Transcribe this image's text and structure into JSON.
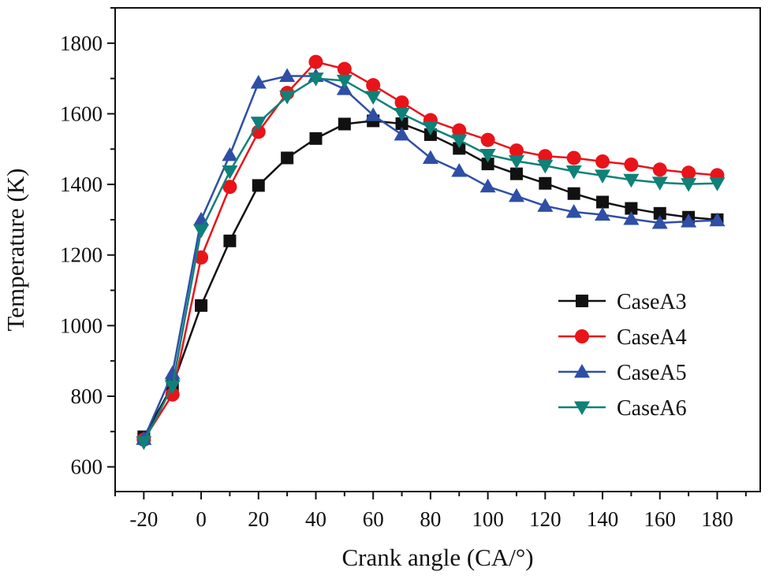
{
  "chart_data": {
    "type": "line",
    "title": "",
    "xlabel": "Crank angle (CA/°)",
    "ylabel": "Temperature (K)",
    "xlim": [
      -30,
      195
    ],
    "ylim": [
      530,
      1900
    ],
    "x_ticks": [
      -20,
      0,
      20,
      40,
      60,
      80,
      100,
      120,
      140,
      160,
      180
    ],
    "x_tick_labels": [
      "-20",
      "0",
      "20",
      "40",
      "60",
      "80",
      "100",
      "120",
      "140",
      "160",
      "180"
    ],
    "y_ticks": [
      600,
      800,
      1000,
      1200,
      1400,
      1600,
      1800
    ],
    "y_tick_labels": [
      "600",
      "800",
      "1000",
      "1200",
      "1400",
      "1600",
      "1800"
    ],
    "grid": false,
    "legend_position": "right",
    "x": [
      -20,
      -10,
      0,
      10,
      20,
      30,
      40,
      50,
      60,
      70,
      80,
      90,
      100,
      110,
      120,
      130,
      140,
      150,
      160,
      170,
      180
    ],
    "series": [
      {
        "name": "CaseA3",
        "color": "#111111",
        "marker": "square",
        "values": [
          685,
          830,
          1057,
          1240,
          1397,
          1475,
          1530,
          1571,
          1580,
          1572,
          1541,
          1502,
          1458,
          1430,
          1403,
          1374,
          1350,
          1332,
          1318,
          1307,
          1300
        ]
      },
      {
        "name": "CaseA4",
        "color": "#e8141a",
        "marker": "circle",
        "values": [
          677,
          805,
          1193,
          1393,
          1549,
          1659,
          1747,
          1727,
          1681,
          1632,
          1582,
          1553,
          1526,
          1496,
          1480,
          1475,
          1465,
          1456,
          1442,
          1433,
          1426
        ]
      },
      {
        "name": "CaseA5",
        "color": "#2e4fa5",
        "marker": "triangle-up",
        "values": [
          679,
          865,
          1300,
          1483,
          1688,
          1707,
          1707,
          1670,
          1596,
          1541,
          1475,
          1438,
          1394,
          1367,
          1339,
          1322,
          1314,
          1302,
          1291,
          1295,
          1298
        ]
      },
      {
        "name": "CaseA6",
        "color": "#0f8178",
        "marker": "triangle-down",
        "values": [
          670,
          829,
          1270,
          1437,
          1575,
          1649,
          1700,
          1694,
          1648,
          1600,
          1561,
          1525,
          1484,
          1466,
          1453,
          1437,
          1425,
          1413,
          1405,
          1401,
          1403
        ]
      }
    ]
  }
}
